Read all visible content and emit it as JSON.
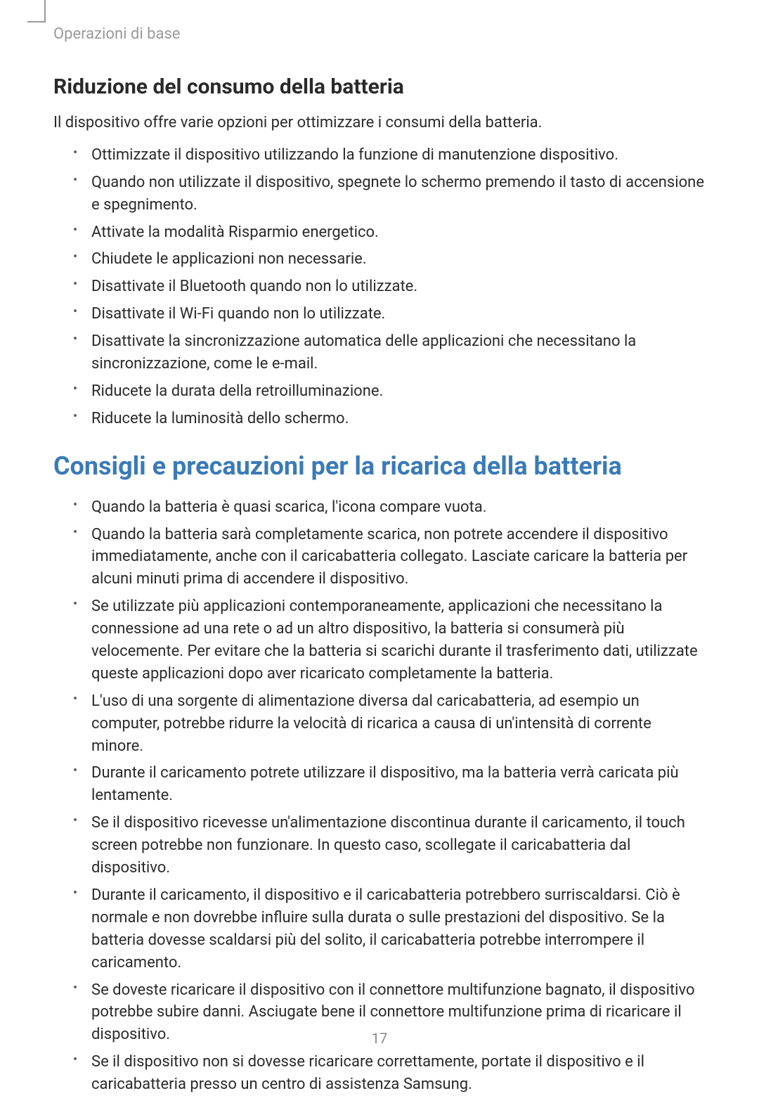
{
  "breadcrumb": "Operazioni di base",
  "section1": {
    "heading": "Riduzione del consumo della batteria",
    "intro": "Il dispositivo offre varie opzioni per ottimizzare i consumi della batteria.",
    "bullets": [
      "Ottimizzate il dispositivo utilizzando la funzione di manutenzione dispositivo.",
      "Quando non utilizzate il dispositivo, spegnete lo schermo premendo il tasto di accensione e spegnimento.",
      "Attivate la modalità Risparmio energetico.",
      "Chiudete le applicazioni non necessarie.",
      "Disattivate il Bluetooth quando non lo utilizzate.",
      "Disattivate il Wi-Fi quando non lo utilizzate.",
      "Disattivate la sincronizzazione automatica delle applicazioni che necessitano la sincronizzazione, come le e-mail.",
      "Riducete la durata della retroilluminazione.",
      "Riducete la luminosità dello schermo."
    ]
  },
  "section2": {
    "heading": "Consigli e precauzioni per la ricarica della batteria",
    "bullets": [
      "Quando la batteria è quasi scarica, l'icona compare vuota.",
      "Quando la batteria sarà completamente scarica, non potrete accendere il dispositivo immediatamente, anche con il caricabatteria collegato. Lasciate caricare la batteria per alcuni minuti prima di accendere il dispositivo.",
      "Se utilizzate più applicazioni contemporaneamente, applicazioni che necessitano la connessione ad una rete o ad un altro dispositivo, la batteria si consumerà più velocemente. Per evitare che la batteria si scarichi durante il trasferimento dati, utilizzate queste applicazioni dopo aver ricaricato completamente la batteria.",
      "L'uso di una sorgente di alimentazione diversa dal caricabatteria, ad esempio un computer, potrebbe ridurre la velocità di ricarica a causa di un'intensità di corrente minore.",
      "Durante il caricamento potrete utilizzare il dispositivo, ma la batteria verrà caricata più lentamente.",
      "Se il dispositivo ricevesse un'alimentazione discontinua durante il caricamento, il touch screen potrebbe non funzionare. In questo caso, scollegate il caricabatteria dal dispositivo.",
      "Durante il caricamento, il dispositivo e il caricabatteria potrebbero surriscaldarsi. Ciò è normale e non dovrebbe influire sulla durata o sulle prestazioni del dispositivo. Se la batteria dovesse scaldarsi più del solito, il caricabatteria potrebbe interrompere il caricamento.",
      "Se doveste ricaricare il dispositivo con il connettore multifunzione bagnato, il dispositivo potrebbe subire danni. Asciugate bene il connettore multifunzione prima di ricaricare il dispositivo.",
      "Se il dispositivo non si dovesse ricaricare correttamente, portate il dispositivo e il caricabatteria presso un centro di assistenza Samsung."
    ]
  },
  "pageNumber": "17",
  "colors": {
    "h1": "#3a7ab8",
    "text": "#2a2a2a",
    "breadcrumb": "#999999",
    "pageNum": "#888888"
  }
}
